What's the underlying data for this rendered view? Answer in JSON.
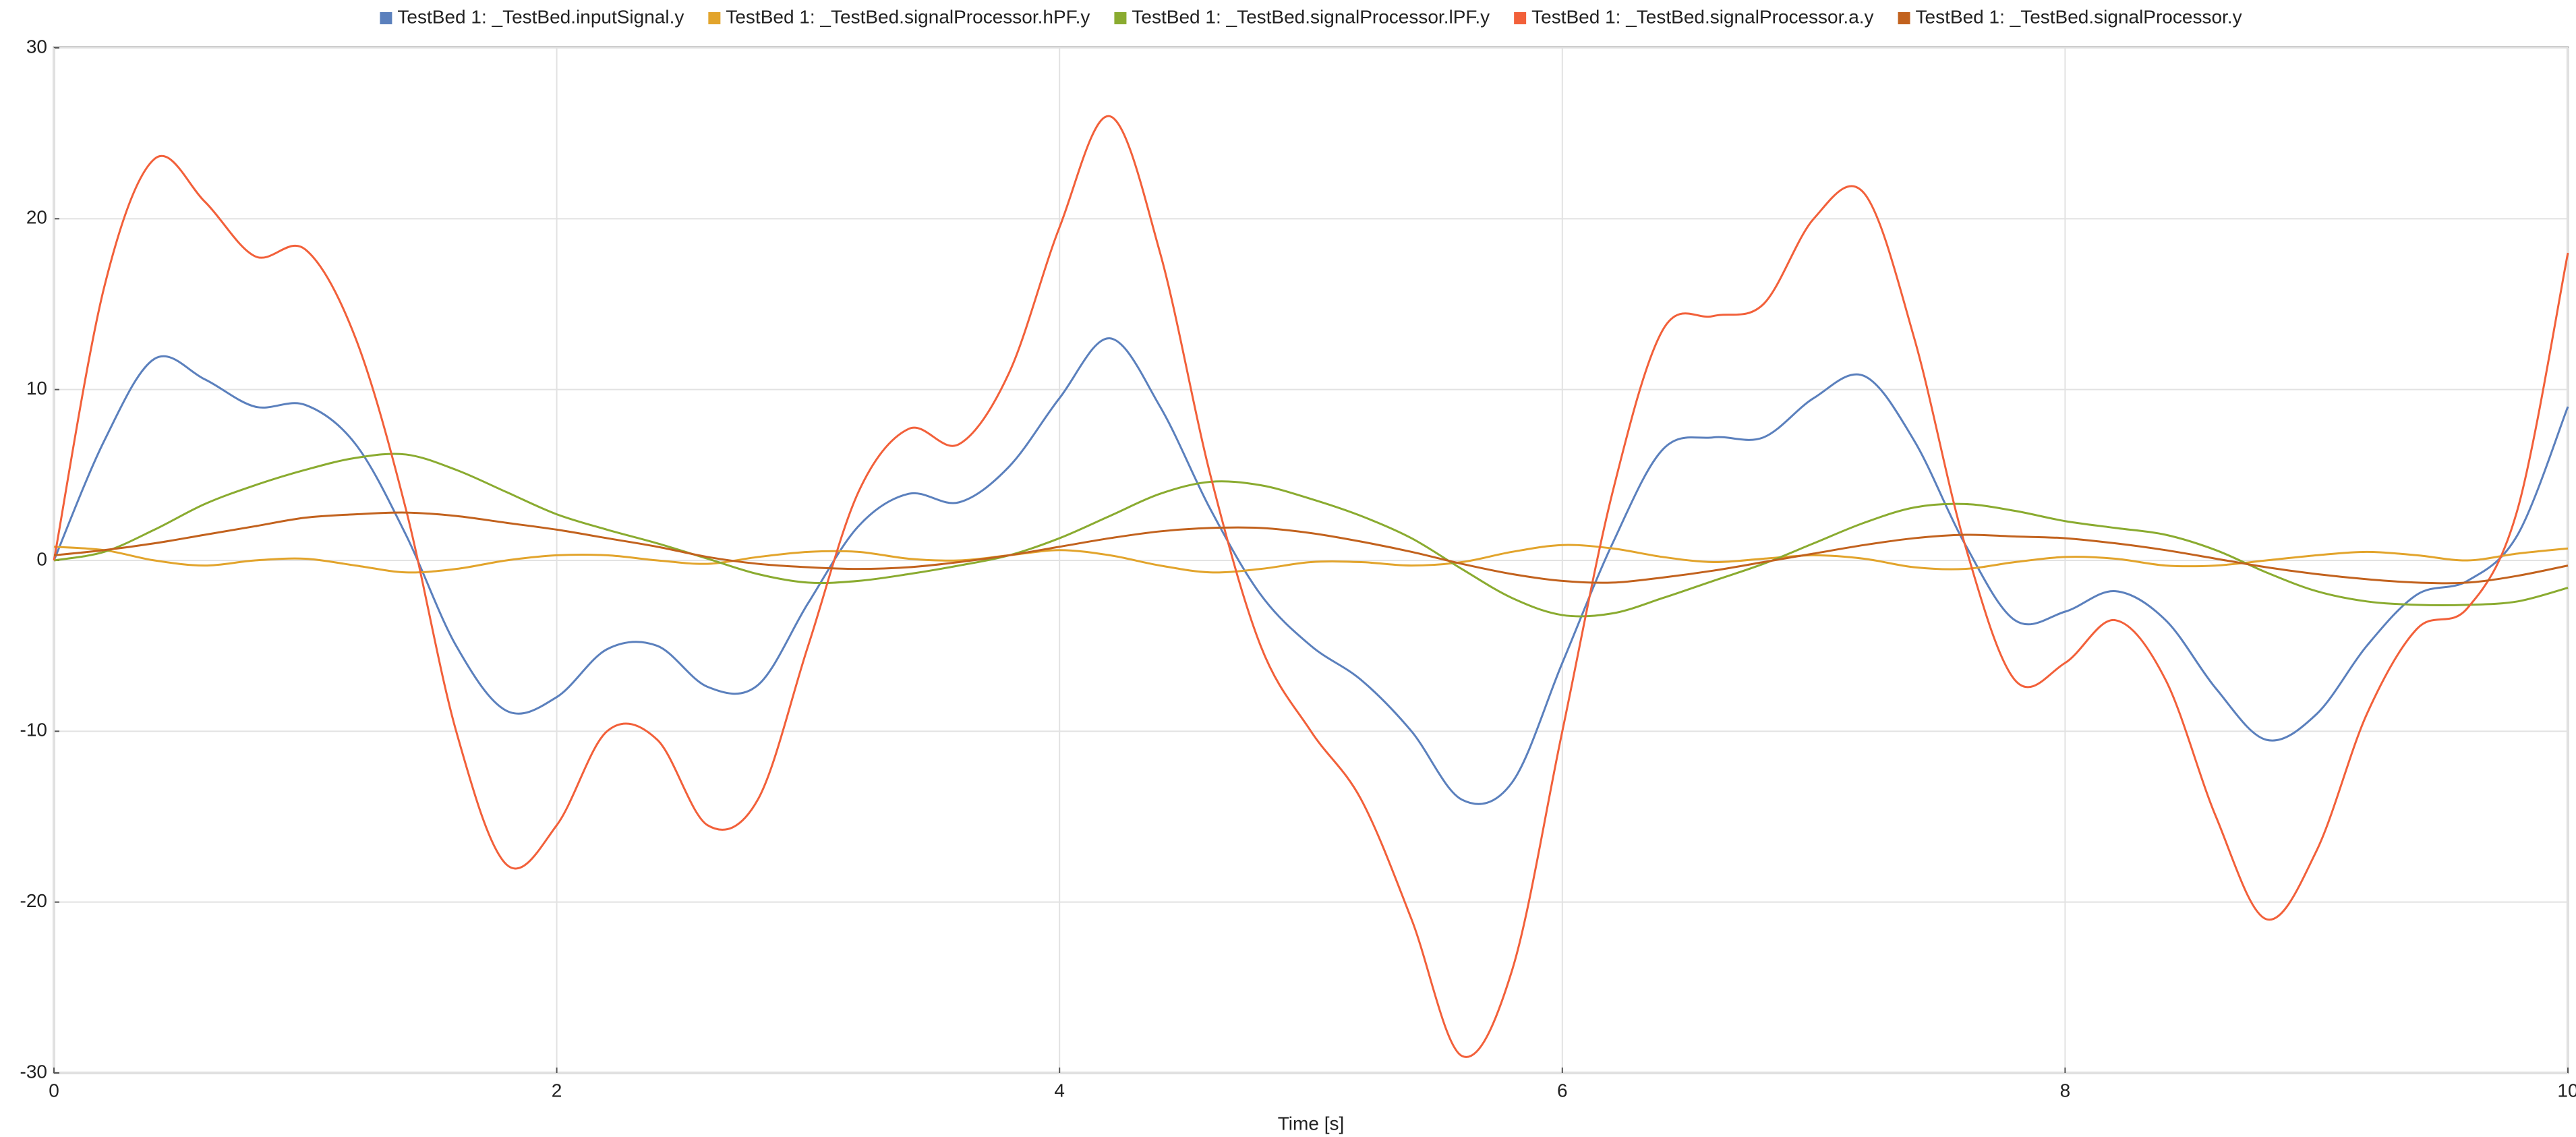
{
  "chart_data": {
    "type": "line",
    "x_label": "Time [s]",
    "x": [
      0,
      0.2,
      0.4,
      0.6,
      0.8,
      1,
      1.2,
      1.4,
      1.6,
      1.8,
      2,
      2.2,
      2.4,
      2.6,
      2.8,
      3,
      3.2,
      3.4,
      3.6,
      3.8,
      4,
      4.2,
      4.4,
      4.6,
      4.8,
      5,
      5.2,
      5.4,
      5.6,
      5.8,
      6,
      6.2,
      6.4,
      6.6,
      6.8,
      7,
      7.2,
      7.4,
      7.6,
      7.8,
      8,
      8.2,
      8.4,
      8.6,
      8.8,
      9,
      9.2,
      9.4,
      9.6,
      9.8,
      10
    ],
    "series": [
      {
        "name": "TestBed 1: _TestBed.inputSignal.y",
        "color": "#5b80bd",
        "values": [
          0,
          7,
          11.8,
          10.6,
          9,
          9.1,
          6.8,
          1.5,
          -5,
          -8.8,
          -8,
          -5.2,
          -5,
          -7.4,
          -7.3,
          -2.5,
          2,
          3.9,
          3.4,
          5.5,
          9.5,
          13,
          9,
          3,
          -2,
          -5,
          -7,
          -10,
          -14,
          -13,
          -6,
          1,
          6.5,
          7.2,
          7.2,
          9.5,
          10.8,
          7,
          1,
          -3.5,
          -3,
          -1.8,
          -3.5,
          -7.5,
          -10.5,
          -9,
          -5,
          -2,
          -1.2,
          1.5,
          9
        ]
      },
      {
        "name": "TestBed 1: _TestBed.signalProcessor.hPF.y",
        "color": "#e2a42c",
        "values": [
          0.8,
          0.6,
          0,
          -0.3,
          0,
          0.1,
          -0.3,
          -0.7,
          -0.5,
          0,
          0.3,
          0.3,
          0,
          -0.2,
          0.2,
          0.5,
          0.5,
          0.1,
          0,
          0.3,
          0.6,
          0.3,
          -0.3,
          -0.7,
          -0.5,
          -0.1,
          -0.1,
          -0.3,
          -0.1,
          0.5,
          0.9,
          0.7,
          0.2,
          -0.1,
          0.1,
          0.3,
          0.1,
          -0.4,
          -0.5,
          -0.1,
          0.2,
          0.1,
          -0.3,
          -0.3,
          0,
          0.3,
          0.5,
          0.3,
          0,
          0.4,
          0.7
        ]
      },
      {
        "name": "TestBed 1: _TestBed.signalProcessor.lPF.y",
        "color": "#8aab30",
        "values": [
          0,
          0.5,
          1.8,
          3.3,
          4.4,
          5.3,
          6,
          6.2,
          5.3,
          4,
          2.7,
          1.8,
          1,
          0.1,
          -0.8,
          -1.3,
          -1.2,
          -0.8,
          -0.3,
          0.3,
          1.3,
          2.6,
          3.9,
          4.6,
          4.4,
          3.6,
          2.6,
          1.3,
          -0.5,
          -2.2,
          -3.2,
          -3.1,
          -2.2,
          -1.2,
          -0.2,
          1,
          2.2,
          3.1,
          3.3,
          2.9,
          2.3,
          1.9,
          1.5,
          0.6,
          -0.7,
          -1.8,
          -2.4,
          -2.6,
          -2.6,
          -2.4,
          -1.6
        ]
      },
      {
        "name": "TestBed 1: _TestBed.signalProcessor.a.y",
        "color": "#f2603a",
        "values": [
          0,
          16,
          23.5,
          21,
          17.8,
          18.2,
          13,
          3,
          -10,
          -17.8,
          -15.5,
          -10,
          -10.5,
          -15.5,
          -14,
          -5,
          4,
          7.7,
          6.8,
          11,
          19.5,
          26,
          18,
          5,
          -5,
          -10,
          -14,
          -21,
          -29,
          -24,
          -10,
          4,
          13.5,
          14.3,
          15,
          20,
          21.5,
          13,
          1,
          -7,
          -6,
          -3.5,
          -7,
          -15,
          -21,
          -17,
          -9,
          -4,
          -2.8,
          3,
          18
        ]
      },
      {
        "name": "TestBed 1: _TestBed.signalProcessor.y",
        "color": "#c2621e",
        "values": [
          0.3,
          0.6,
          1,
          1.5,
          2,
          2.5,
          2.7,
          2.8,
          2.6,
          2.2,
          1.8,
          1.3,
          0.8,
          0.2,
          -0.2,
          -0.4,
          -0.5,
          -0.4,
          -0.1,
          0.3,
          0.8,
          1.3,
          1.7,
          1.9,
          1.9,
          1.6,
          1.1,
          0.5,
          -0.2,
          -0.8,
          -1.2,
          -1.3,
          -1,
          -0.6,
          -0.1,
          0.4,
          0.9,
          1.3,
          1.5,
          1.4,
          1.3,
          1,
          0.6,
          0.1,
          -0.4,
          -0.8,
          -1.1,
          -1.3,
          -1.3,
          -0.9,
          -0.3
        ]
      }
    ],
    "xlim": [
      0,
      10
    ],
    "xticks": [
      0,
      2,
      4,
      6,
      8,
      10
    ],
    "ylim": [
      -30,
      30
    ],
    "yticks": [
      -30,
      -20,
      -10,
      0,
      10,
      20,
      30
    ],
    "grid": true,
    "legend": "top"
  }
}
